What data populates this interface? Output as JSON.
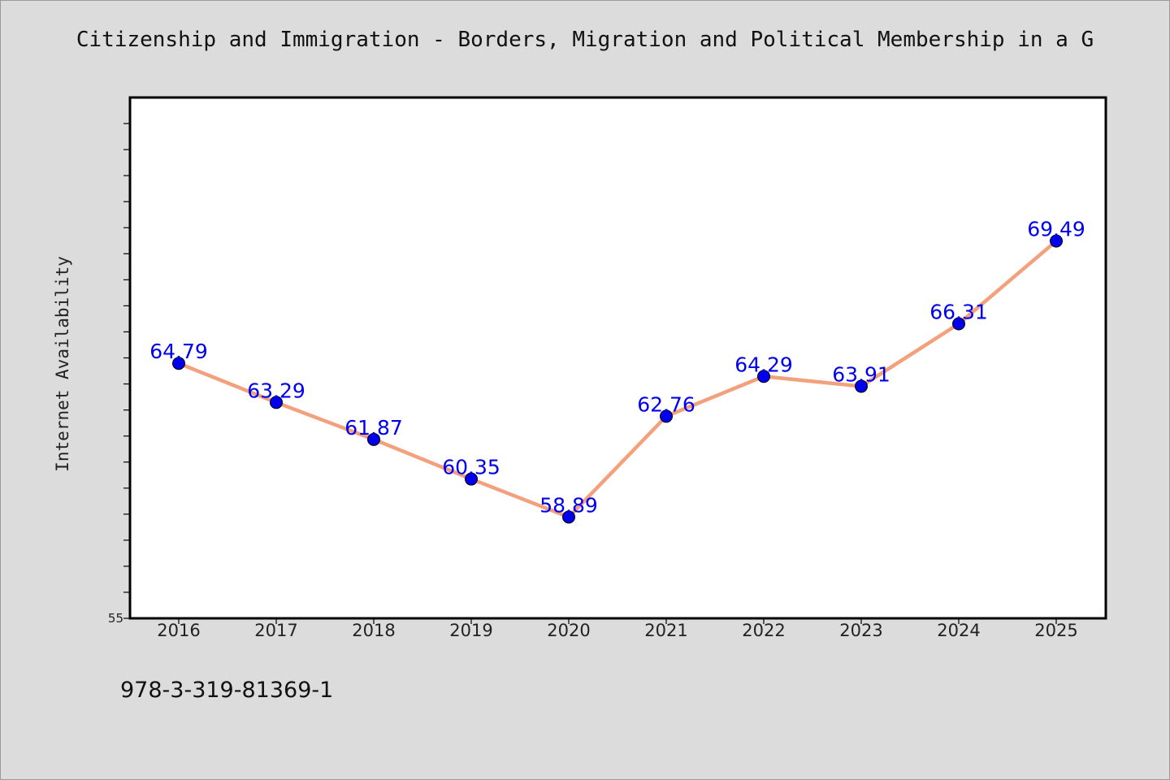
{
  "footer": {
    "isbn": "978-3-319-81369-1"
  },
  "colors": {
    "background": "#dcdcdc",
    "plot_area": "#ffffff",
    "line": "#f4a07c",
    "marker": "#0000ee",
    "label": "#0000ee"
  },
  "chart_data": {
    "type": "line",
    "title": "Citizenship and Immigration - Borders, Migration and Political Membership in a G",
    "xlabel": "",
    "ylabel": "Internet Availability",
    "categories": [
      "2016",
      "2017",
      "2018",
      "2019",
      "2020",
      "2021",
      "2022",
      "2023",
      "2024",
      "2025"
    ],
    "series": [
      {
        "values": [
          64.79,
          63.29,
          61.87,
          60.35,
          58.89,
          62.76,
          64.29,
          63.91,
          66.31,
          69.49
        ],
        "labels": [
          "64.79",
          "63.29",
          "61.87",
          "60.35",
          "58.89",
          "62.76",
          "64.29",
          "63.91",
          "66.31",
          "69.49"
        ]
      }
    ],
    "ylim": [
      55,
      75
    ],
    "y_tick_labels": [
      "55"
    ],
    "markers": true,
    "data_labels": true,
    "grid": false,
    "legend": "none"
  }
}
